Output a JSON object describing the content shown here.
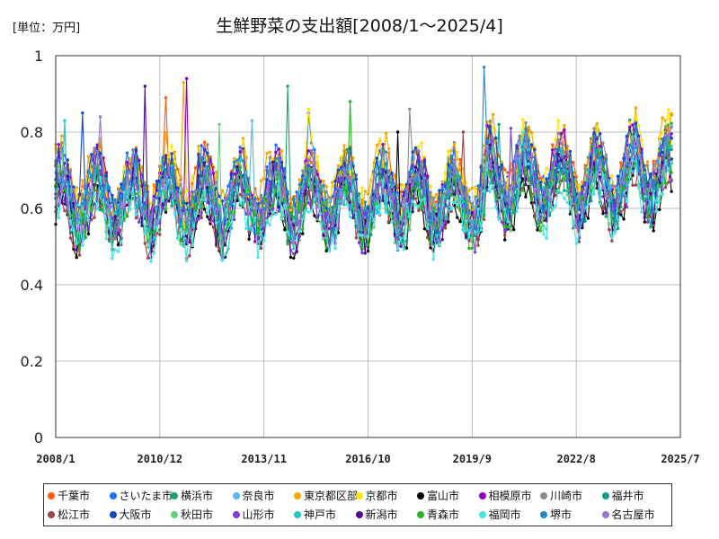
{
  "unit_label": "[単位：万円]",
  "chart_data": {
    "type": "line",
    "title": "生鮮野菜の支出額[2008/1～2025/4]",
    "xlabel": "",
    "ylabel": "",
    "x_range": [
      "2008/1",
      "2025/7"
    ],
    "x_ticks": [
      "2008/1",
      "2010/12",
      "2013/11",
      "2016/10",
      "2019/9",
      "2022/8",
      "2025/7"
    ],
    "ylim": [
      0,
      1
    ],
    "y_ticks": [
      0,
      0.2,
      0.4,
      0.6,
      0.8,
      1
    ],
    "y_tick_labels": [
      "0",
      "0.2",
      "0.4",
      "0.6",
      "0.8",
      "1"
    ],
    "grid": true,
    "legend_position": "bottom",
    "series_note_values_are_approximate": true,
    "series": [
      {
        "name": "千葉市",
        "color": "#ff5a0a",
        "mean": 0.66,
        "amp": 0.07,
        "peak": 0.89
      },
      {
        "name": "さいたま市",
        "color": "#1f6fff",
        "mean": 0.65,
        "amp": 0.07,
        "peak": 0.85
      },
      {
        "name": "横浜市",
        "color": "#1aa36b",
        "mean": 0.64,
        "amp": 0.07,
        "peak": 0.92
      },
      {
        "name": "奈良市",
        "color": "#5ab4f0",
        "mean": 0.62,
        "amp": 0.06,
        "peak": 0.83
      },
      {
        "name": "東京都区部",
        "color": "#f0a800",
        "mean": 0.68,
        "amp": 0.07,
        "peak": 0.93
      },
      {
        "name": "京都市",
        "color": "#ffe400",
        "mean": 0.66,
        "amp": 0.07,
        "peak": 0.86
      },
      {
        "name": "富山市",
        "color": "#000000",
        "mean": 0.58,
        "amp": 0.06,
        "peak": 0.8
      },
      {
        "name": "相模原市",
        "color": "#8a00c8",
        "mean": 0.64,
        "amp": 0.08,
        "peak": 0.94
      },
      {
        "name": "川崎市",
        "color": "#8c8c8c",
        "mean": 0.65,
        "amp": 0.07,
        "peak": 0.86
      },
      {
        "name": "福井市",
        "color": "#149a8c",
        "mean": 0.6,
        "amp": 0.06,
        "peak": 0.82
      },
      {
        "name": "松江市",
        "color": "#a04646",
        "mean": 0.58,
        "amp": 0.06,
        "peak": 0.8
      },
      {
        "name": "大阪市",
        "color": "#1446c8",
        "mean": 0.65,
        "amp": 0.07,
        "peak": 0.85
      },
      {
        "name": "秋田市",
        "color": "#64d278",
        "mean": 0.6,
        "amp": 0.06,
        "peak": 0.82
      },
      {
        "name": "山形市",
        "color": "#7a3cdc",
        "mean": 0.59,
        "amp": 0.06,
        "peak": 0.81
      },
      {
        "name": "神戸市",
        "color": "#1ec8c8",
        "mean": 0.61,
        "amp": 0.06,
        "peak": 0.83
      },
      {
        "name": "新潟市",
        "color": "#4b0a8c",
        "mean": 0.6,
        "amp": 0.07,
        "peak": 0.92
      },
      {
        "name": "青森市",
        "color": "#28b428",
        "mean": 0.6,
        "amp": 0.06,
        "peak": 0.88
      },
      {
        "name": "福岡市",
        "color": "#46e6e6",
        "mean": 0.58,
        "amp": 0.06,
        "peak": 0.8
      },
      {
        "name": "堺市",
        "color": "#1e8cc8",
        "mean": 0.64,
        "amp": 0.07,
        "peak": 0.97
      },
      {
        "name": "名古屋市",
        "color": "#9678c8",
        "mean": 0.63,
        "amp": 0.07,
        "peak": 0.84
      }
    ]
  }
}
